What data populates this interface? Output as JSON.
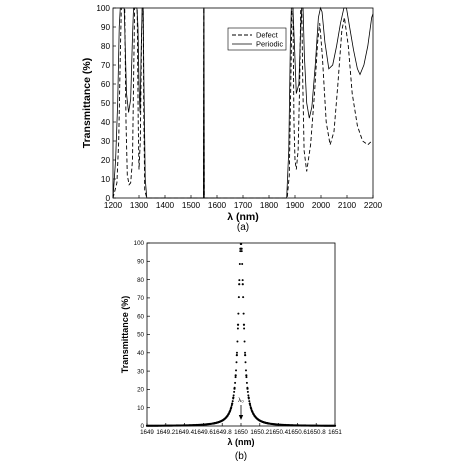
{
  "chart_data": [
    {
      "type": "line",
      "panel_label": "(a)",
      "xlabel": "λ (nm)",
      "ylabel": "Transmittance (%)",
      "xlim": [
        1200,
        2200
      ],
      "ylim": [
        0,
        100
      ],
      "x_ticks": [
        "1200",
        "1300",
        "1400",
        "1500",
        "1600",
        "1700",
        "1800",
        "1900",
        "2000",
        "2100",
        "2200"
      ],
      "y_ticks": [
        "0",
        "10",
        "20",
        "30",
        "40",
        "50",
        "60",
        "70",
        "80",
        "90",
        "100"
      ],
      "grid": false,
      "legend_position": "top-right",
      "series": [
        {
          "name": "Defect",
          "style": "dashed",
          "color": "#000000",
          "points": [
            [
              1200,
              0
            ],
            [
              1215,
              8
            ],
            [
              1222,
              30
            ],
            [
              1228,
              75
            ],
            [
              1232,
              100
            ],
            [
              1240,
              100
            ],
            [
              1245,
              100
            ],
            [
              1250,
              40
            ],
            [
              1255,
              12
            ],
            [
              1262,
              7
            ],
            [
              1268,
              8
            ],
            [
              1275,
              20
            ],
            [
              1280,
              70
            ],
            [
              1283,
              100
            ],
            [
              1290,
              100
            ],
            [
              1293,
              100
            ],
            [
              1297,
              40
            ],
            [
              1300,
              15
            ],
            [
              1305,
              30
            ],
            [
              1310,
              85
            ],
            [
              1313,
              100
            ],
            [
              1316,
              100
            ],
            [
              1318,
              50
            ],
            [
              1322,
              4
            ],
            [
              1330,
              0
            ],
            [
              1548,
              0
            ],
            [
              1549,
              100
            ],
            [
              1550,
              100
            ],
            [
              1551,
              0
            ],
            [
              1870,
              0
            ],
            [
              1878,
              12
            ],
            [
              1885,
              70
            ],
            [
              1888,
              100
            ],
            [
              1892,
              100
            ],
            [
              1896,
              40
            ],
            [
              1900,
              20
            ],
            [
              1905,
              15
            ],
            [
              1912,
              25
            ],
            [
              1918,
              60
            ],
            [
              1922,
              100
            ],
            [
              1926,
              100
            ],
            [
              1930,
              60
            ],
            [
              1935,
              25
            ],
            [
              1945,
              14
            ],
            [
              1960,
              28
            ],
            [
              1975,
              55
            ],
            [
              1987,
              82
            ],
            [
              1995,
              92
            ],
            [
              2005,
              75
            ],
            [
              2020,
              40
            ],
            [
              2035,
              28
            ],
            [
              2050,
              35
            ],
            [
              2065,
              60
            ],
            [
              2080,
              88
            ],
            [
              2090,
              95
            ],
            [
              2105,
              80
            ],
            [
              2120,
              55
            ],
            [
              2140,
              38
            ],
            [
              2160,
              30
            ],
            [
              2180,
              28
            ],
            [
              2195,
              30
            ]
          ]
        },
        {
          "name": "Periodic",
          "style": "solid",
          "color": "#000000",
          "points": [
            [
              1200,
              0
            ],
            [
              1210,
              20
            ],
            [
              1218,
              50
            ],
            [
              1224,
              90
            ],
            [
              1228,
              100
            ],
            [
              1236,
              100
            ],
            [
              1243,
              100
            ],
            [
              1247,
              80
            ],
            [
              1252,
              55
            ],
            [
              1260,
              45
            ],
            [
              1268,
              52
            ],
            [
              1275,
              85
            ],
            [
              1279,
              100
            ],
            [
              1286,
              100
            ],
            [
              1292,
              100
            ],
            [
              1296,
              90
            ],
            [
              1300,
              60
            ],
            [
              1304,
              45
            ],
            [
              1308,
              75
            ],
            [
              1312,
              100
            ],
            [
              1316,
              100
            ],
            [
              1319,
              60
            ],
            [
              1324,
              10
            ],
            [
              1330,
              0
            ],
            [
              1548,
              0
            ],
            [
              1549,
              100
            ],
            [
              1550,
              100
            ],
            [
              1551,
              0
            ],
            [
              1868,
              0
            ],
            [
              1876,
              25
            ],
            [
              1882,
              80
            ],
            [
              1886,
              100
            ],
            [
              1892,
              100
            ],
            [
              1898,
              80
            ],
            [
              1905,
              55
            ],
            [
              1915,
              60
            ],
            [
              1922,
              90
            ],
            [
              1926,
              100
            ],
            [
              1931,
              100
            ],
            [
              1936,
              75
            ],
            [
              1945,
              50
            ],
            [
              1955,
              42
            ],
            [
              1965,
              48
            ],
            [
              1978,
              70
            ],
            [
              1990,
              95
            ],
            [
              1998,
              100
            ],
            [
              2004,
              98
            ],
            [
              2015,
              82
            ],
            [
              2030,
              68
            ],
            [
              2045,
              70
            ],
            [
              2060,
              80
            ],
            [
              2075,
              92
            ],
            [
              2088,
              100
            ],
            [
              2098,
              100
            ],
            [
              2110,
              90
            ],
            [
              2125,
              78
            ],
            [
              2140,
              68
            ],
            [
              2150,
              65
            ],
            [
              2165,
              70
            ],
            [
              2180,
              80
            ],
            [
              2195,
              95
            ],
            [
              2200,
              97
            ]
          ]
        }
      ]
    },
    {
      "type": "line",
      "panel_label": "(b)",
      "xlabel": "λ (nm)",
      "ylabel": "Transmittance (%)",
      "xlim": [
        1649,
        1651
      ],
      "ylim": [
        0,
        100
      ],
      "x_ticks": [
        "1649",
        "1649.2",
        "1649.4",
        "1649.6",
        "1649.8",
        "1650",
        "1650.2",
        "1650.4",
        "1650.6",
        "1650.8",
        "1651"
      ],
      "y_ticks": [
        "0",
        "10",
        "20",
        "30",
        "40",
        "50",
        "60",
        "70",
        "80",
        "90",
        "100"
      ],
      "grid": false,
      "annotation": "λ₀",
      "annotation_x": 1650,
      "series": [
        {
          "style": "dotted",
          "color": "#000000",
          "center": 1650,
          "peak": 100,
          "half_width": 0.035,
          "x_start": 1649,
          "x_end": 1651,
          "n_points": 160
        }
      ]
    }
  ]
}
